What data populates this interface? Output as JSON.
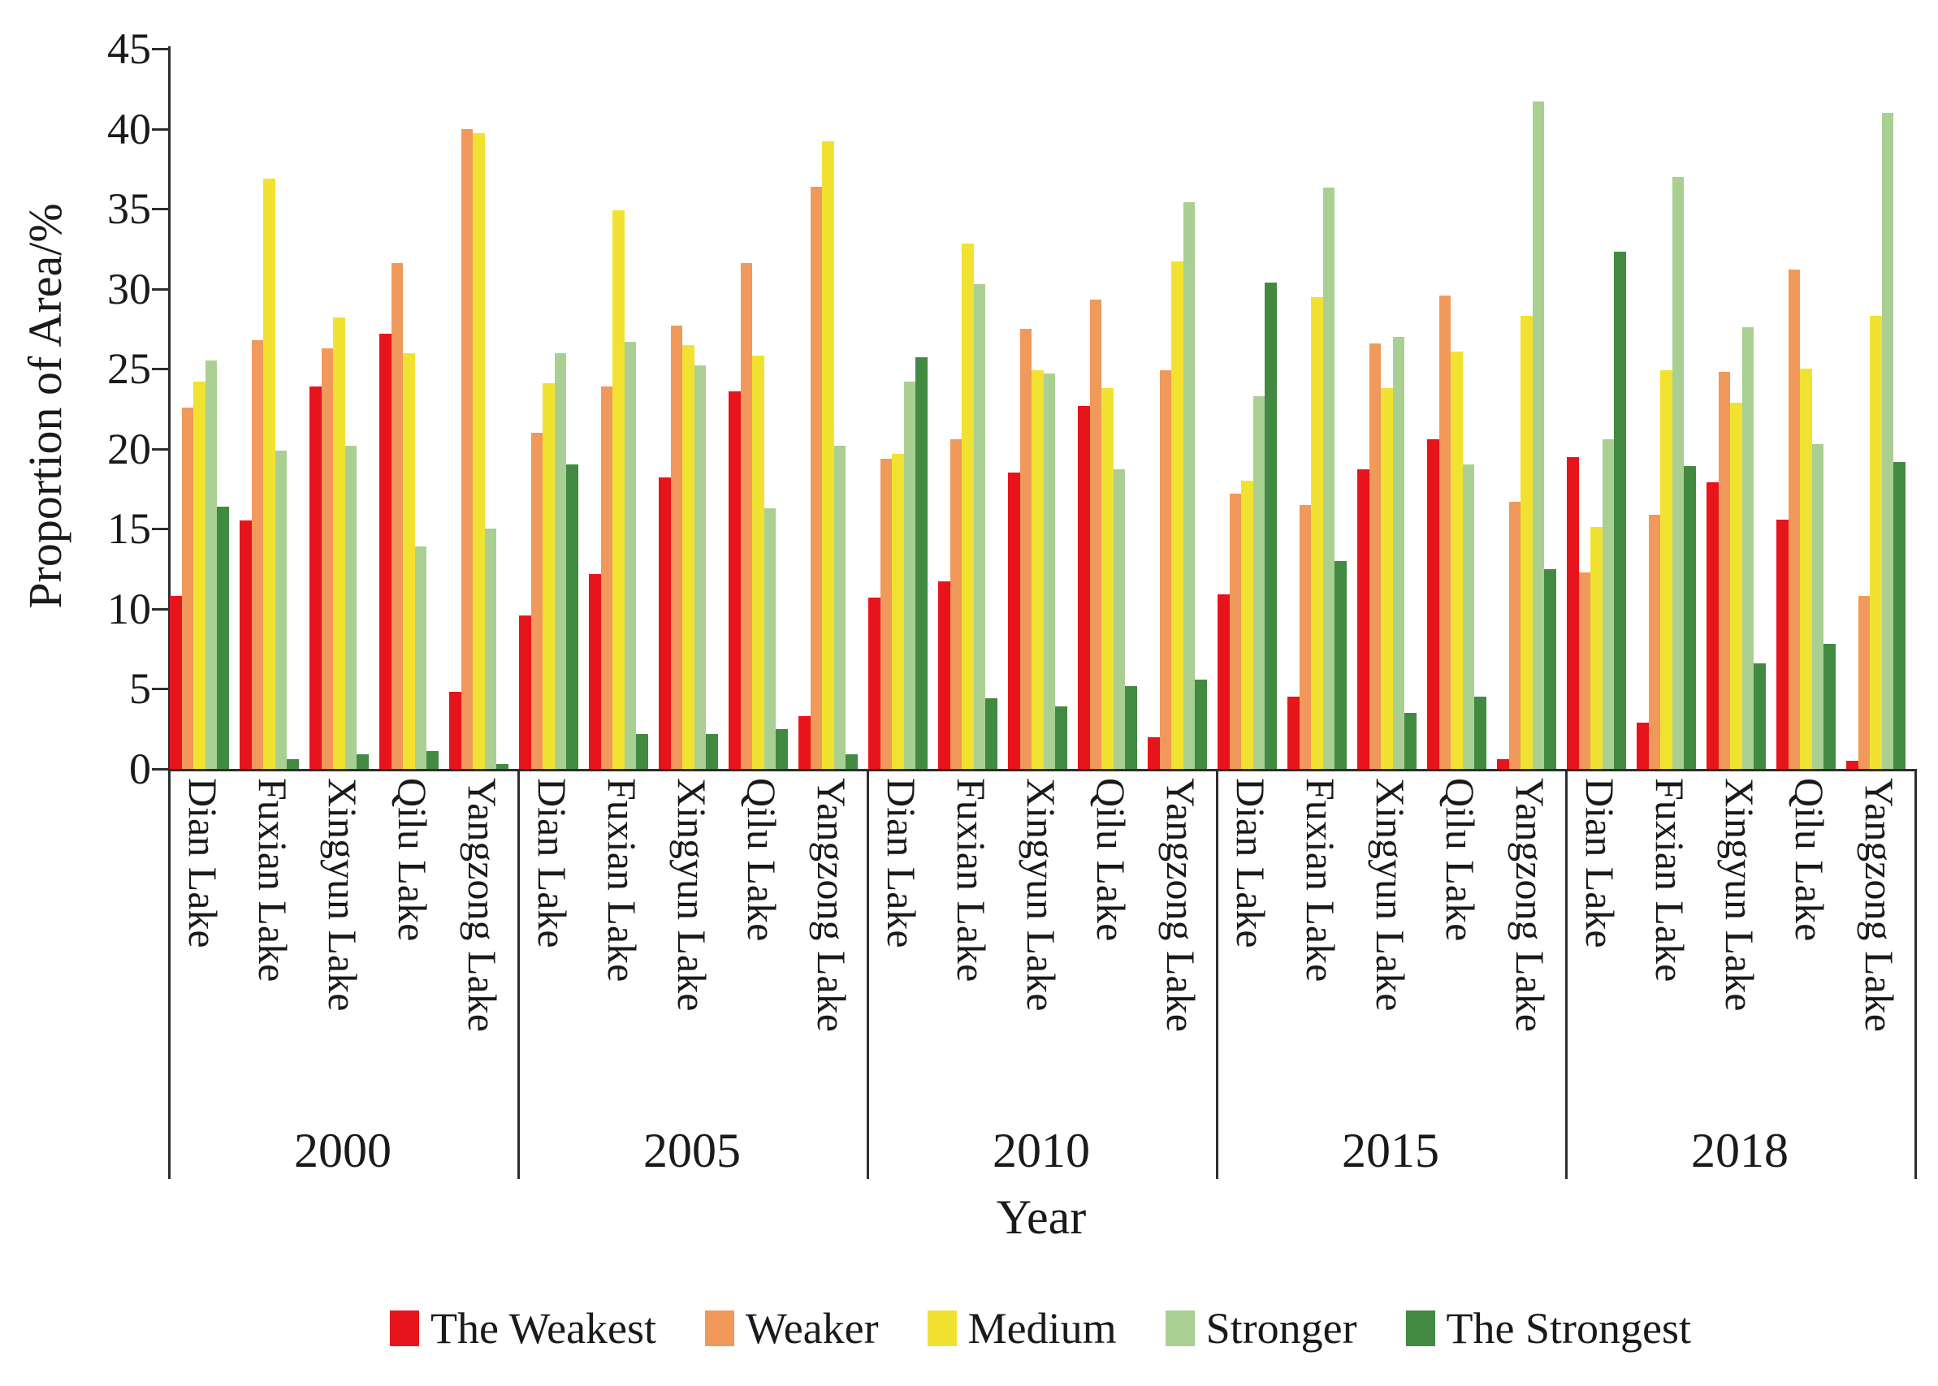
{
  "chart_data": {
    "type": "bar",
    "title": "",
    "ylabel": "Proportion of Area/%",
    "xlabel": "Year",
    "ylim": [
      0,
      45
    ],
    "ytick_step": 5,
    "grid": false,
    "legend_position": "bottom",
    "legend": [
      {
        "label": "The Weakest",
        "color": "#e8141c"
      },
      {
        "label": "Weaker",
        "color": "#f0995b"
      },
      {
        "label": "Medium",
        "color": "#f1e232"
      },
      {
        "label": "Stronger",
        "color": "#a9d092"
      },
      {
        "label": "The Strongest",
        "color": "#428a42"
      }
    ],
    "lakes": [
      "Dian Lake",
      "Fuxian Lake",
      "Xingyun Lake",
      "Qilu Lake",
      "Yangzong Lake"
    ],
    "years": [
      {
        "label": "2000",
        "groups": [
          {
            "lake": "Dian Lake",
            "values": [
              10.8,
              22.6,
              24.2,
              25.5,
              16.4
            ]
          },
          {
            "lake": "Fuxian Lake",
            "values": [
              15.5,
              26.8,
              36.9,
              19.9,
              0.6
            ]
          },
          {
            "lake": "Xingyun Lake",
            "values": [
              23.9,
              26.3,
              28.2,
              20.2,
              0.9
            ]
          },
          {
            "lake": "Qilu Lake",
            "values": [
              27.2,
              31.6,
              26.0,
              13.9,
              1.1
            ]
          },
          {
            "lake": "Yangzong Lake",
            "values": [
              4.8,
              40.0,
              39.7,
              15.0,
              0.3
            ]
          }
        ]
      },
      {
        "label": "2005",
        "groups": [
          {
            "lake": "Dian Lake",
            "values": [
              9.6,
              21.0,
              24.1,
              26.0,
              19.0
            ]
          },
          {
            "lake": "Fuxian Lake",
            "values": [
              12.2,
              23.9,
              34.9,
              26.7,
              2.2
            ]
          },
          {
            "lake": "Xingyun Lake",
            "values": [
              18.2,
              27.7,
              26.5,
              25.2,
              2.2
            ]
          },
          {
            "lake": "Qilu Lake",
            "values": [
              23.6,
              31.6,
              25.8,
              16.3,
              2.5
            ]
          },
          {
            "lake": "Yangzong Lake",
            "values": [
              3.3,
              36.4,
              39.2,
              20.2,
              0.9
            ]
          }
        ]
      },
      {
        "label": "2010",
        "groups": [
          {
            "lake": "Dian Lake",
            "values": [
              10.7,
              19.4,
              19.7,
              24.2,
              25.7
            ]
          },
          {
            "lake": "Fuxian Lake",
            "values": [
              11.7,
              20.6,
              32.8,
              30.3,
              4.4
            ]
          },
          {
            "lake": "Xingyun Lake",
            "values": [
              18.5,
              27.5,
              24.9,
              24.7,
              3.9
            ]
          },
          {
            "lake": "Qilu Lake",
            "values": [
              22.7,
              29.3,
              23.8,
              18.7,
              5.2
            ]
          },
          {
            "lake": "Yangzong Lake",
            "values": [
              2.0,
              24.9,
              31.7,
              35.4,
              5.6
            ]
          }
        ]
      },
      {
        "label": "2015",
        "groups": [
          {
            "lake": "Dian Lake",
            "values": [
              10.9,
              17.2,
              18.0,
              23.3,
              30.4
            ]
          },
          {
            "lake": "Fuxian Lake",
            "values": [
              4.5,
              16.5,
              29.5,
              36.3,
              13.0
            ]
          },
          {
            "lake": "Xingyun Lake",
            "values": [
              18.7,
              26.6,
              23.8,
              27.0,
              3.5
            ]
          },
          {
            "lake": "Qilu Lake",
            "values": [
              20.6,
              29.6,
              26.1,
              19.0,
              4.5
            ]
          },
          {
            "lake": "Yangzong Lake",
            "values": [
              0.6,
              16.7,
              28.3,
              41.7,
              12.5
            ]
          }
        ]
      },
      {
        "label": "2018",
        "groups": [
          {
            "lake": "Dian Lake",
            "values": [
              19.5,
              12.3,
              15.1,
              20.6,
              32.3
            ]
          },
          {
            "lake": "Fuxian Lake",
            "values": [
              2.9,
              15.9,
              24.9,
              37.0,
              18.9
            ]
          },
          {
            "lake": "Xingyun Lake",
            "values": [
              17.9,
              24.8,
              22.9,
              27.6,
              6.6
            ]
          },
          {
            "lake": "Qilu Lake",
            "values": [
              15.6,
              31.2,
              25.0,
              20.3,
              7.8
            ]
          },
          {
            "lake": "Yangzong Lake",
            "values": [
              0.5,
              10.8,
              28.3,
              41.0,
              19.2
            ]
          }
        ]
      }
    ]
  }
}
